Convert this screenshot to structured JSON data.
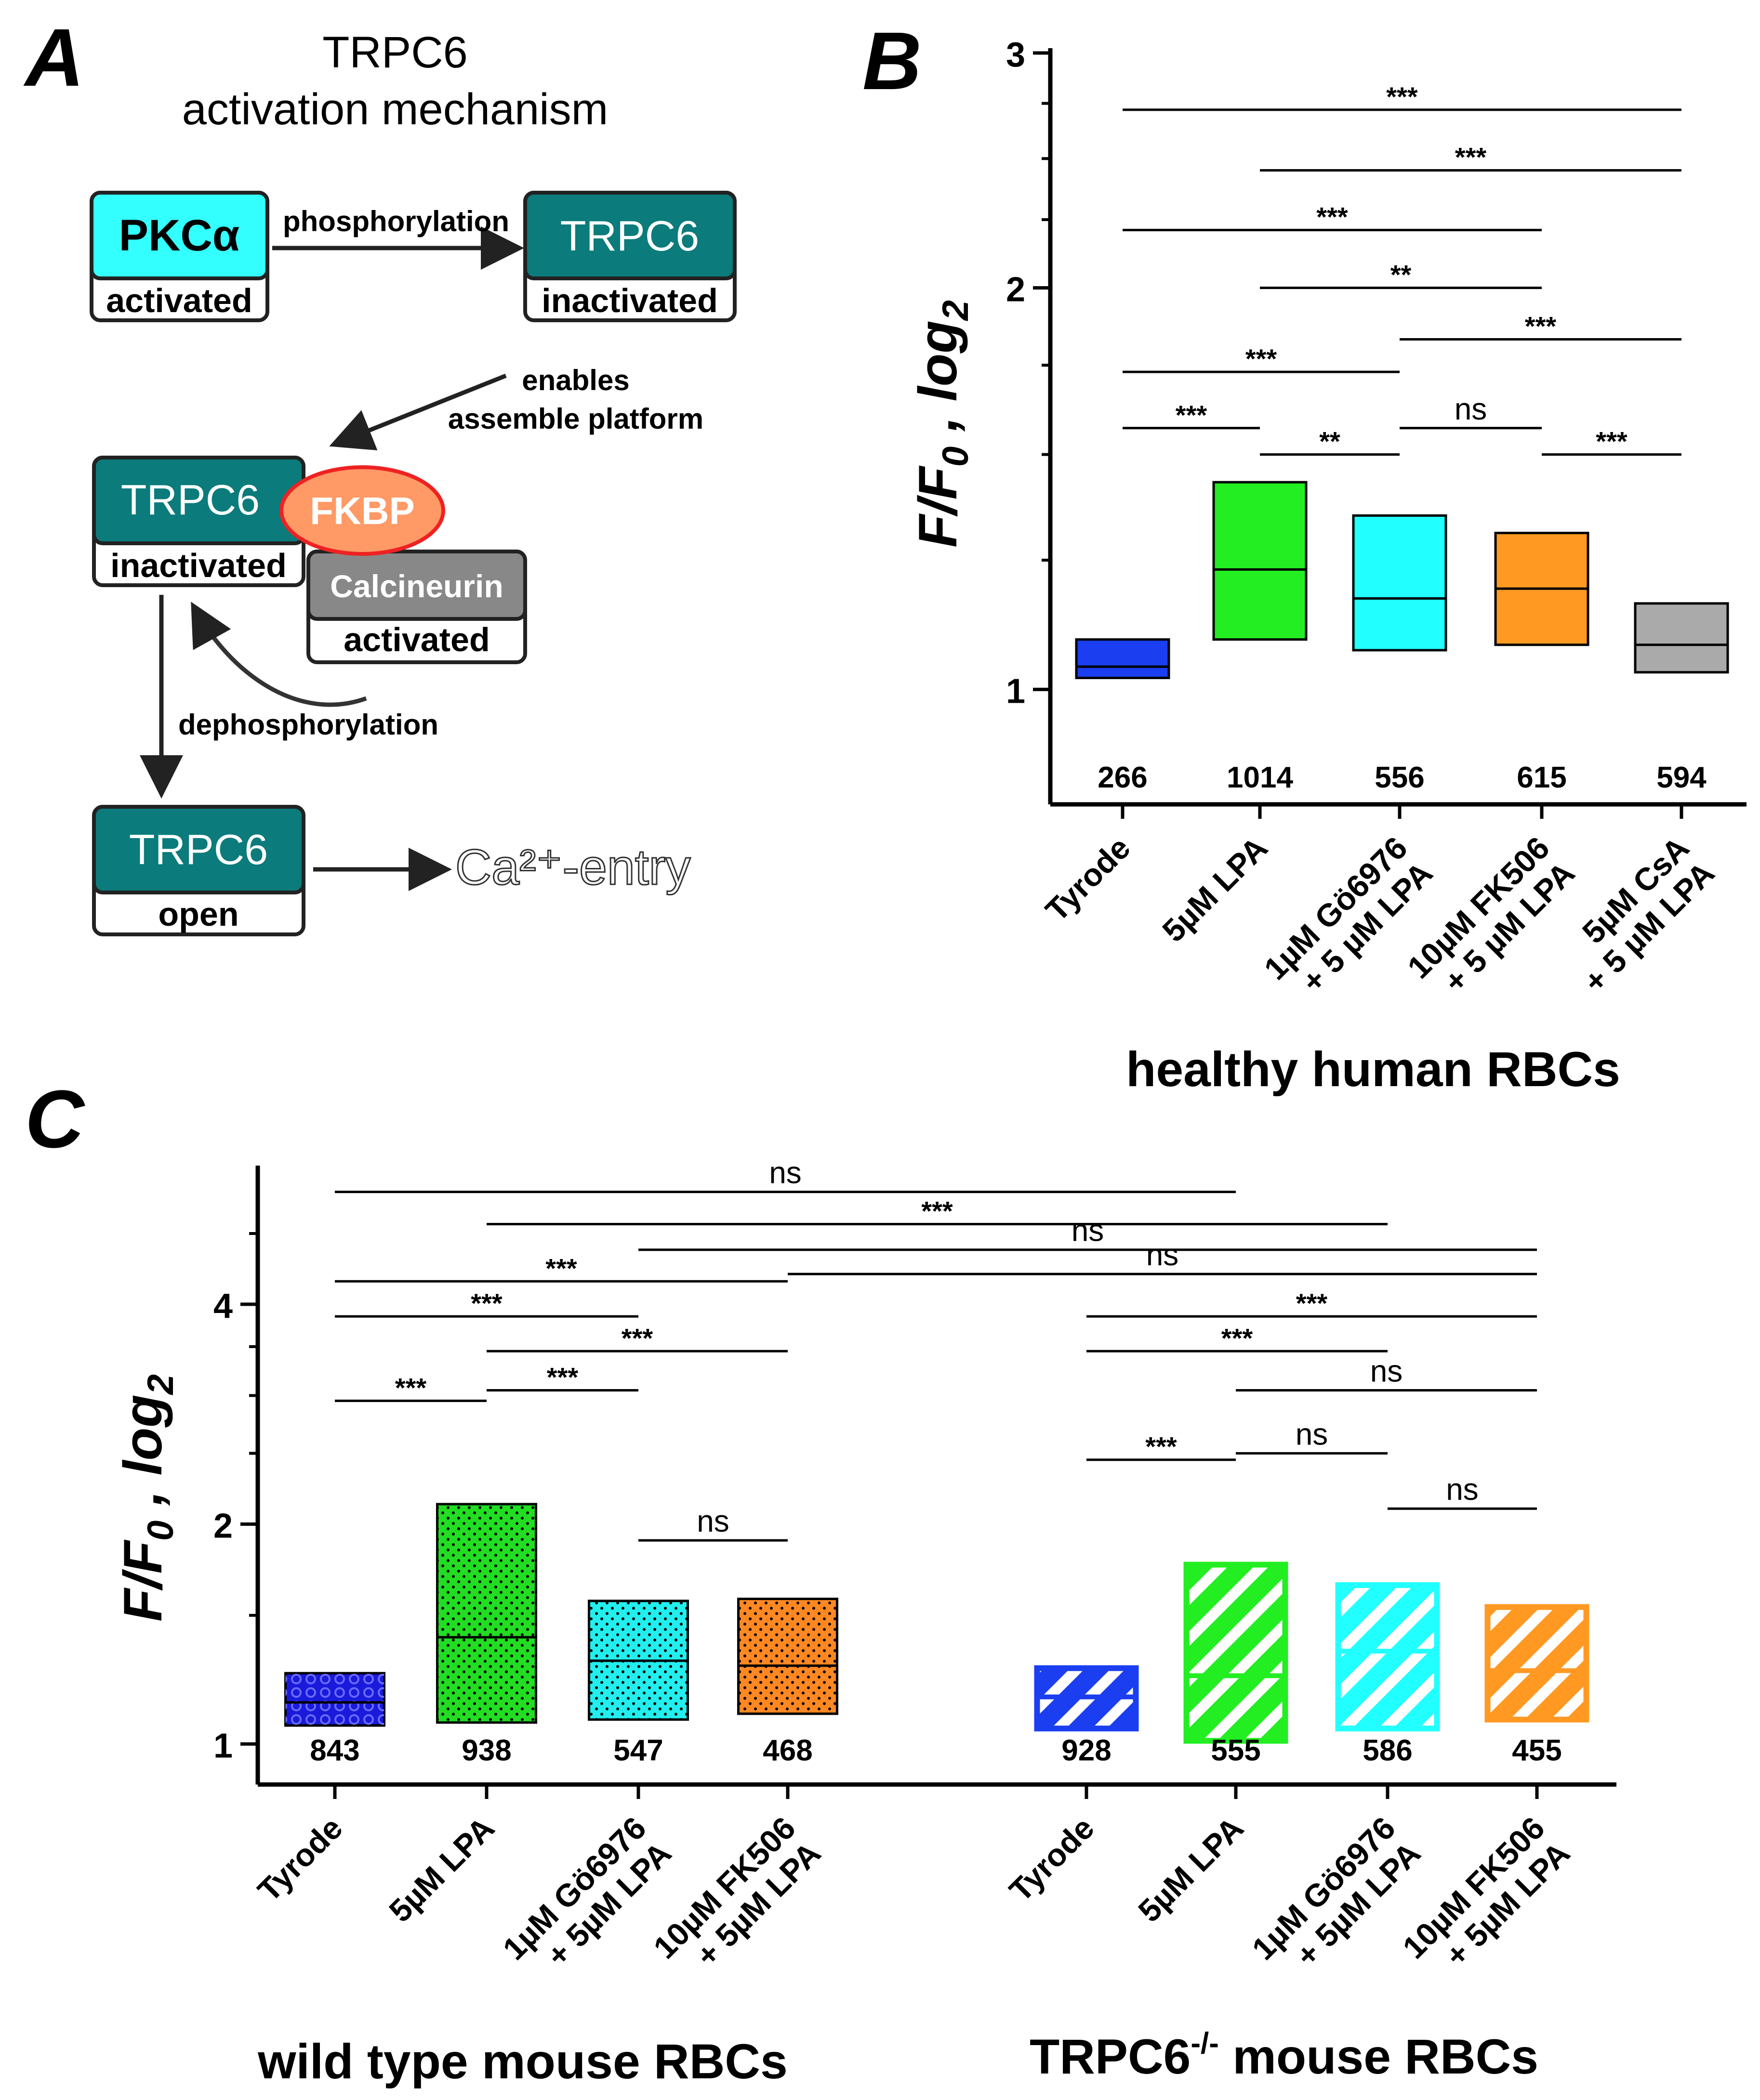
{
  "panelA": {
    "label": "A",
    "title_line1": "TRPC6",
    "title_line2": "activation mechanism",
    "pkc_name": "PKCα",
    "pkc_state": "activated",
    "phosphorylation": "phosphorylation",
    "trpc6_top_name": "TRPC6",
    "trpc6_top_state": "inactivated",
    "enables_line1": "enables",
    "enables_line2": "assemble platform",
    "trpc6_mid_name": "TRPC6",
    "trpc6_mid_state": "inactivated",
    "fkbp": "FKBP",
    "calcineurin_name": "Calcineurin",
    "calcineurin_state": "activated",
    "dephosphorylation": "dephosphorylation",
    "trpc6_bottom_name": "TRPC6",
    "trpc6_bottom_state": "open",
    "ca_entry": "Ca²⁺-entry",
    "colors": {
      "pkc": "#33ffff",
      "trpc6": "#0b7b7b",
      "fkbp_fill": "#ff9966",
      "fkbp_border": "#ee2222",
      "calcineurin": "#888888"
    }
  },
  "chart_data": [
    {
      "panel": "B",
      "type": "box",
      "ylabel": "F/F0 , log2",
      "xlabel": "healthy human RBCs",
      "yscale": "log2",
      "ylim": [
        0.82,
        3.0
      ],
      "yticks": [
        1,
        2,
        3
      ],
      "categories": [
        "Tyrode",
        "5µM LPA",
        "1µM Gö6976 + 5 µM LPA",
        "10µM FK506 + 5 µM LPA",
        "5µM CsA + 5 µM LPA"
      ],
      "category_lines": [
        [
          "Tyrode"
        ],
        [
          "5µM LPA"
        ],
        [
          "1µM Gö6976",
          "+ 5 µM LPA"
        ],
        [
          "10µM FK506",
          "+ 5 µM LPA"
        ],
        [
          "5µM CsA",
          "+ 5 µM LPA"
        ]
      ],
      "boxes": [
        {
          "q1": 1.02,
          "median": 1.04,
          "q3": 1.09,
          "color": "#1a3ef0",
          "pattern": "solid"
        },
        {
          "q1": 1.09,
          "median": 1.23,
          "q3": 1.43,
          "color": "#22ee22",
          "pattern": "solid"
        },
        {
          "q1": 1.07,
          "median": 1.17,
          "q3": 1.35,
          "color": "#22ffff",
          "pattern": "solid"
        },
        {
          "q1": 1.08,
          "median": 1.19,
          "q3": 1.31,
          "color": "#ff9922",
          "pattern": "solid"
        },
        {
          "q1": 1.03,
          "median": 1.08,
          "q3": 1.16,
          "color": "#aaaaaa",
          "pattern": "solid"
        }
      ],
      "n": [
        "266",
        "1014",
        "556",
        "615",
        "594"
      ],
      "significance": [
        {
          "from": 0,
          "to": 4,
          "y": 2.72,
          "label": "***"
        },
        {
          "from": 1,
          "to": 4,
          "y": 2.45,
          "label": "***"
        },
        {
          "from": 0,
          "to": 3,
          "y": 2.21,
          "label": "***"
        },
        {
          "from": 1,
          "to": 3,
          "y": 2.0,
          "label": "**"
        },
        {
          "from": 2,
          "to": 4,
          "y": 1.83,
          "label": "***"
        },
        {
          "from": 0,
          "to": 2,
          "y": 1.73,
          "label": "***"
        },
        {
          "from": 0,
          "to": 1,
          "y": 1.57,
          "label": "***"
        },
        {
          "from": 2,
          "to": 3,
          "y": 1.57,
          "label": "ns"
        },
        {
          "from": 1,
          "to": 2,
          "y": 1.5,
          "label": "**"
        },
        {
          "from": 3,
          "to": 4,
          "y": 1.5,
          "label": "***"
        }
      ]
    },
    {
      "panel": "C",
      "type": "box",
      "ylabel": "F/F0 , log2",
      "yscale": "log2",
      "ylim": [
        0.88,
        6.1
      ],
      "yticks": [
        1,
        2,
        4
      ],
      "groups": [
        "wild type mouse RBCs",
        "TRPC6 -/- mouse RBCs"
      ],
      "categories": [
        "Tyrode",
        "5µM LPA",
        "1µM Gö6976 + 5µM LPA",
        "10µM FK506 + 5µM LPA",
        "Tyrode",
        "5µM LPA",
        "1µM Gö6976 + 5µM LPA",
        "10µM FK506 + 5µM LPA"
      ],
      "category_lines": [
        [
          "Tyrode"
        ],
        [
          "5µM LPA"
        ],
        [
          "1µM Gö6976",
          "+ 5µM LPA"
        ],
        [
          "10µM FK506",
          "+ 5µM LPA"
        ],
        [
          "Tyrode"
        ],
        [
          "5µM LPA"
        ],
        [
          "1µM Gö6976",
          "+ 5µM LPA"
        ],
        [
          "10µM FK506",
          "+ 5µM LPA"
        ]
      ],
      "boxes": [
        {
          "q1": 1.06,
          "median": 1.14,
          "q3": 1.25,
          "color": "#1a1adb",
          "pattern": "circles"
        },
        {
          "q1": 1.07,
          "median": 1.4,
          "q3": 2.13,
          "color": "#22dd22",
          "pattern": "dots"
        },
        {
          "q1": 1.08,
          "median": 1.3,
          "q3": 1.57,
          "color": "#22eeee",
          "pattern": "dots"
        },
        {
          "q1": 1.1,
          "median": 1.28,
          "q3": 1.58,
          "color": "#ff8822",
          "pattern": "dots"
        },
        {
          "q1": 1.05,
          "median": 1.16,
          "q3": 1.27,
          "color": "#1a3ef0",
          "pattern": "hatch"
        },
        {
          "q1": 1.01,
          "median": 1.24,
          "q3": 1.76,
          "color": "#22ee22",
          "pattern": "hatch"
        },
        {
          "q1": 1.05,
          "median": 1.34,
          "q3": 1.65,
          "color": "#22ffff",
          "pattern": "hatch"
        },
        {
          "q1": 1.08,
          "median": 1.26,
          "q3": 1.54,
          "color": "#ff9922",
          "pattern": "hatch"
        }
      ],
      "n": [
        "843",
        "938",
        "547",
        "468",
        "928",
        "555",
        "586",
        "455"
      ],
      "significance": [
        {
          "from": 0,
          "to": 5,
          "y": 5.7,
          "label": "ns"
        },
        {
          "from": 1,
          "to": 6,
          "y": 5.15,
          "label": "***"
        },
        {
          "from": 2,
          "to": 7,
          "y": 4.75,
          "label": "ns"
        },
        {
          "from": 3,
          "to": 8,
          "y": 4.4,
          "label": "ns"
        },
        {
          "from": 0,
          "to": 3,
          "y": 4.3,
          "label": "***"
        },
        {
          "from": 0,
          "to": 2,
          "y": 3.85,
          "label": "***"
        },
        {
          "from": 1,
          "to": 3,
          "y": 3.45,
          "label": "***"
        },
        {
          "from": 0,
          "to": 1,
          "y": 2.95,
          "label": "***"
        },
        {
          "from": 1,
          "to": 2,
          "y": 3.05,
          "label": "***"
        },
        {
          "from": 2,
          "to": 3,
          "y": 1.9,
          "label": "ns"
        },
        {
          "from": 4,
          "to": 7,
          "y": 3.85,
          "label": "***"
        },
        {
          "from": 4,
          "to": 6,
          "y": 3.45,
          "label": "***"
        },
        {
          "from": 5,
          "to": 7,
          "y": 3.05,
          "label": "ns"
        },
        {
          "from": 4,
          "to": 5,
          "y": 2.45,
          "label": "***"
        },
        {
          "from": 5,
          "to": 6,
          "y": 2.5,
          "label": "ns"
        },
        {
          "from": 6,
          "to": 7,
          "y": 2.1,
          "label": "ns"
        }
      ]
    }
  ],
  "labels": {
    "panelB": "B",
    "panelC": "C",
    "y_main": "F/F",
    "y_sub0": "0",
    "y_mid": " , log",
    "y_sub2": "2",
    "xlabel_B": "healthy human RBCs",
    "group_wt": "wild type mouse RBCs",
    "group_ko_main": "TRPC6",
    "group_ko_sup": "-/-",
    "group_ko_rest": " mouse RBCs"
  }
}
